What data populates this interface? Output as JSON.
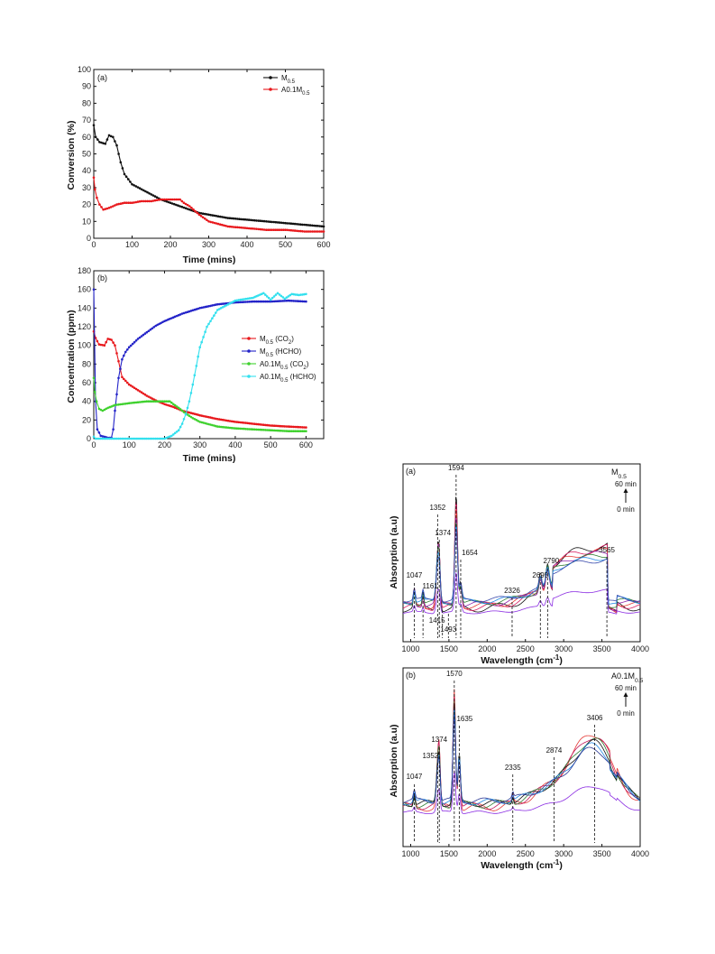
{
  "chart_data": [
    {
      "id": "conv",
      "type": "line",
      "panel_label": "(a)",
      "xlabel": "Time (mins)",
      "ylabel": "Conversion (%)",
      "xlim": [
        0,
        600
      ],
      "ylim": [
        0,
        100
      ],
      "xticks": [
        "0",
        "100",
        "200",
        "300",
        "400",
        "500",
        "600"
      ],
      "yticks": [
        "0",
        "10",
        "20",
        "30",
        "40",
        "50",
        "60",
        "70",
        "80",
        "90",
        "100"
      ],
      "legend_position": "top-right",
      "series": [
        {
          "name": "M",
          "sub": "0.5",
          "color": "#111111",
          "x": [
            0,
            5,
            15,
            30,
            40,
            50,
            60,
            70,
            80,
            100,
            125,
            150,
            175,
            200,
            225,
            250,
            275,
            300,
            325,
            350,
            400,
            450,
            500,
            550,
            600
          ],
          "y": [
            67,
            60,
            57,
            56,
            61,
            60,
            55,
            45,
            38,
            32,
            29,
            26,
            23,
            21,
            19,
            17,
            15,
            14,
            13,
            12,
            11,
            10,
            9,
            8,
            7
          ]
        },
        {
          "name": "A0.1M",
          "sub": "0.5",
          "color": "#e8181c",
          "x": [
            0,
            3,
            8,
            15,
            25,
            40,
            60,
            80,
            100,
            125,
            150,
            175,
            200,
            215,
            225,
            235,
            250,
            275,
            300,
            350,
            400,
            450,
            500,
            550,
            600
          ],
          "y": [
            36,
            29,
            24,
            20,
            17,
            18,
            20,
            21,
            21,
            22,
            22,
            23,
            23,
            23,
            23,
            21,
            19,
            14,
            10,
            7,
            6,
            5,
            5,
            4,
            4
          ]
        }
      ]
    },
    {
      "id": "conc",
      "type": "line",
      "panel_label": "(b)",
      "xlabel": "Time (mins)",
      "ylabel": "Concentration (ppm)",
      "xlim": [
        0,
        650
      ],
      "ylim": [
        0,
        180
      ],
      "xticks": [
        "0",
        "100",
        "200",
        "300",
        "400",
        "500",
        "600"
      ],
      "yticks": [
        "0",
        "20",
        "40",
        "60",
        "80",
        "100",
        "120",
        "140",
        "160",
        "180"
      ],
      "legend_position": "center-right",
      "series": [
        {
          "name": "M",
          "sub": "0.5",
          "suffix": " (CO",
          "suffix_sub": "2",
          "suffix_end": ")",
          "color": "#e8181c",
          "x": [
            0,
            5,
            15,
            30,
            40,
            50,
            60,
            70,
            80,
            100,
            125,
            150,
            175,
            200,
            225,
            250,
            300,
            350,
            400,
            450,
            500,
            550,
            600
          ],
          "y": [
            115,
            108,
            101,
            100,
            107,
            106,
            100,
            83,
            66,
            58,
            52,
            46,
            41,
            37,
            34,
            30,
            25,
            21,
            18,
            16,
            14,
            13,
            12
          ]
        },
        {
          "name": "M",
          "sub": "0.5",
          "suffix": " (HCHO)",
          "color": "#2323c8",
          "x": [
            0,
            5,
            10,
            20,
            30,
            40,
            50,
            55,
            60,
            70,
            80,
            90,
            100,
            125,
            150,
            175,
            200,
            250,
            300,
            350,
            400,
            450,
            500,
            550,
            600
          ],
          "y": [
            160,
            40,
            10,
            3,
            2,
            1,
            1,
            10,
            30,
            65,
            85,
            93,
            98,
            107,
            114,
            121,
            126,
            134,
            140,
            144,
            146,
            147,
            147,
            148,
            147
          ]
        },
        {
          "name": "A0.1M",
          "sub": "0.5",
          "suffix": " (CO",
          "suffix_sub": "2",
          "suffix_end": ")",
          "color": "#3fd12e",
          "x": [
            0,
            3,
            8,
            15,
            25,
            40,
            60,
            100,
            150,
            200,
            215,
            225,
            240,
            260,
            280,
            300,
            350,
            400,
            450,
            500,
            550,
            600
          ],
          "y": [
            65,
            50,
            40,
            32,
            30,
            33,
            36,
            38,
            40,
            40,
            40,
            37,
            33,
            27,
            22,
            18,
            13,
            11,
            10,
            9,
            8,
            8
          ]
        },
        {
          "name": "A0.1M",
          "sub": "0.5",
          "suffix": " (HCHO)",
          "color": "#33e0ee",
          "x": [
            0,
            5,
            10,
            20,
            50,
            100,
            150,
            200,
            220,
            240,
            250,
            260,
            270,
            280,
            290,
            300,
            320,
            350,
            400,
            450,
            480,
            500,
            520,
            540,
            560,
            580,
            600
          ],
          "y": [
            2,
            0,
            0,
            0,
            0,
            0,
            0,
            0,
            3,
            9,
            16,
            26,
            40,
            58,
            78,
            98,
            120,
            138,
            148,
            151,
            156,
            149,
            156,
            150,
            155,
            154,
            155
          ]
        }
      ]
    },
    {
      "id": "ir-a",
      "type": "line",
      "panel_label": "(a)",
      "sample_label": {
        "main": "M",
        "sub": "0.5"
      },
      "xlabel": "Wavelength (cm",
      "xlabel_sup": "-1",
      "xlabel_end": ")",
      "ylabel": "Absorption (a.u)",
      "xlim": [
        900,
        4000
      ],
      "xticks": [
        "1000",
        "1500",
        "2000",
        "2500",
        "3000",
        "3500",
        "4000"
      ],
      "time_arrow": {
        "top": "60 min",
        "bottom": "0 min"
      },
      "peaks": [
        "1047",
        "1161",
        "1352",
        "1374",
        "1415",
        "1493",
        "1594",
        "1654",
        "2326",
        "2695",
        "2790",
        "3565"
      ],
      "peak_positions": [
        1047,
        1161,
        1352,
        1374,
        1415,
        1493,
        1594,
        1654,
        2326,
        2695,
        2790,
        3565
      ],
      "series_colors": [
        "#111111",
        "#d81b60",
        "#e53935",
        "#8e24aa",
        "#2e7d32",
        "#1e88e5",
        "#3949ab",
        "#8a2be2"
      ]
    },
    {
      "id": "ir-b",
      "type": "line",
      "panel_label": "(b)",
      "sample_label": {
        "main": "A0.1M",
        "sub": "0.5"
      },
      "xlabel": "Wavelength (cm",
      "xlabel_sup": "-1",
      "xlabel_end": ")",
      "ylabel": "Absorption (a.u)",
      "xlim": [
        900,
        4000
      ],
      "xticks": [
        "1000",
        "1500",
        "2000",
        "2500",
        "3000",
        "3500",
        "4000"
      ],
      "time_arrow": {
        "top": "60 min",
        "bottom": "0 min"
      },
      "peaks": [
        "1047",
        "1352",
        "1374",
        "1570",
        "1635",
        "2335",
        "2874",
        "3406"
      ],
      "peak_positions": [
        1047,
        1352,
        1374,
        1570,
        1635,
        2335,
        2874,
        3406
      ],
      "series_colors": [
        "#e53935",
        "#c2185b",
        "#2e7d32",
        "#111111",
        "#1e88e5",
        "#283593",
        "#8a2be2"
      ]
    }
  ]
}
